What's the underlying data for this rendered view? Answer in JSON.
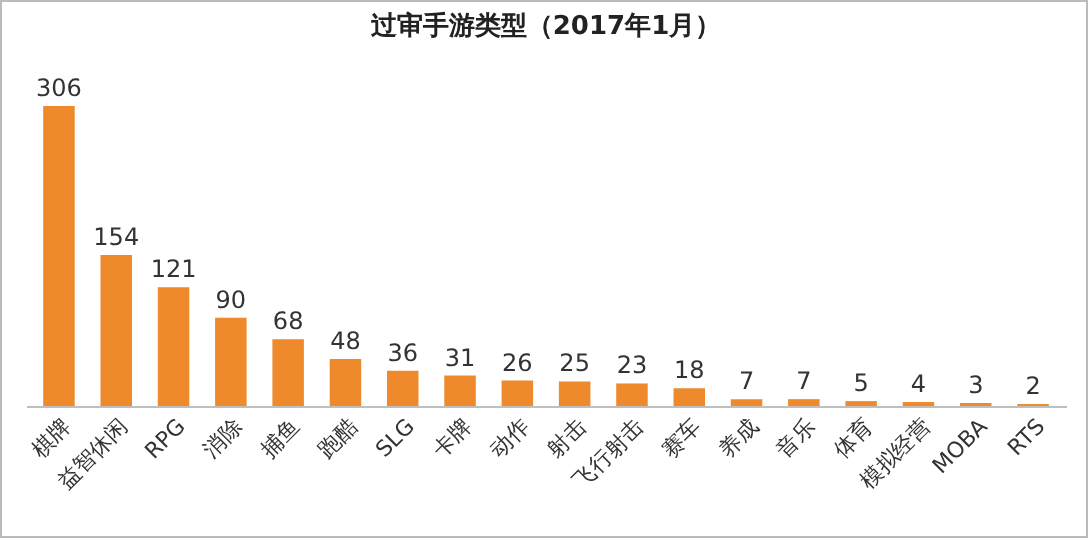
{
  "chart_data": {
    "type": "bar",
    "title": "过审手游类型（2017年1月）",
    "categories": [
      "棋牌",
      "益智休闲",
      "RPG",
      "消除",
      "捕鱼",
      "跑酷",
      "SLG",
      "卡牌",
      "动作",
      "射击",
      "飞行射击",
      "赛车",
      "养成",
      "音乐",
      "体育",
      "模拟经营",
      "MOBA",
      "RTS"
    ],
    "values": [
      306,
      154,
      121,
      90,
      68,
      48,
      36,
      31,
      26,
      25,
      23,
      18,
      7,
      7,
      5,
      4,
      3,
      2
    ],
    "color": "#ee8a2c",
    "data_labels": true
  }
}
